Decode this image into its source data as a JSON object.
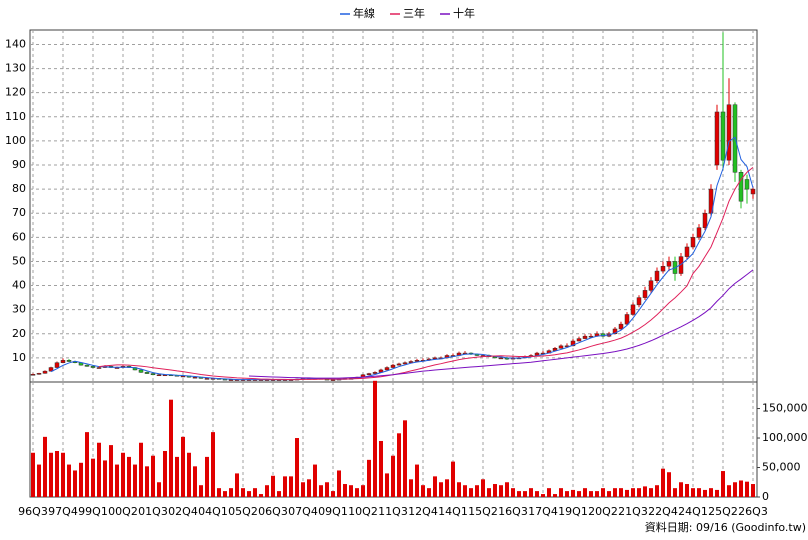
{
  "chart_data": {
    "type": "candlestick",
    "categories": [
      "96Q3",
      null,
      null,
      null,
      null,
      "97Q4",
      null,
      null,
      null,
      null,
      "99Q1",
      null,
      null,
      null,
      null,
      "00Q2",
      null,
      null,
      null,
      null,
      "01Q3",
      null,
      null,
      null,
      null,
      "02Q4",
      null,
      null,
      null,
      null,
      "04Q1",
      null,
      null,
      null,
      null,
      "05Q2",
      null,
      null,
      null,
      null,
      "06Q3",
      null,
      null,
      null,
      null,
      "07Q4",
      null,
      null,
      null,
      null,
      "09Q1",
      null,
      null,
      null,
      null,
      "10Q2",
      null,
      null,
      null,
      null,
      "11Q3",
      null,
      null,
      null,
      null,
      "12Q4",
      null,
      null,
      null,
      null,
      "14Q1",
      null,
      null,
      null,
      null,
      "15Q2",
      null,
      null,
      null,
      null,
      "16Q3",
      null,
      null,
      null,
      null,
      "17Q4",
      null,
      null,
      null,
      null,
      "19Q1",
      null,
      null,
      null,
      null,
      "20Q2",
      null,
      null,
      null,
      null,
      "21Q3",
      null,
      null,
      null,
      null,
      "22Q4",
      null,
      null,
      null,
      null,
      "24Q1",
      null,
      null,
      null,
      null,
      "25Q2",
      null,
      null,
      null,
      null,
      "26Q3"
    ],
    "open": [
      3,
      3.2,
      3.6,
      4.5,
      6,
      8,
      9,
      8.5,
      8,
      7,
      6.5,
      6,
      6,
      6.5,
      6,
      6,
      6.5,
      6,
      5,
      4,
      3.5,
      3,
      3,
      3,
      2.8,
      2.5,
      2.5,
      2,
      2,
      1.5,
      1.5,
      1.5,
      1.2,
      1,
      1,
      1,
      1,
      1,
      1,
      1,
      1,
      1,
      1,
      1,
      1,
      1.2,
      1.5,
      1.5,
      1.5,
      1.2,
      1,
      1,
      1.2,
      1.5,
      1.5,
      2,
      3,
      3.5,
      4,
      5,
      6,
      7,
      7.5,
      8,
      8.5,
      9,
      9,
      9.5,
      10,
      10,
      11,
      11,
      12,
      12,
      11.5,
      11,
      11,
      10.5,
      10,
      10,
      9.5,
      10,
      10,
      10.5,
      11,
      12,
      12,
      13,
      14,
      15,
      15,
      17,
      18,
      19,
      19,
      20,
      19,
      20,
      22,
      24,
      28,
      32,
      35,
      38,
      42,
      46,
      48,
      50,
      45,
      52,
      56,
      60,
      64,
      70,
      90,
      112,
      92,
      115,
      87,
      84,
      78
    ],
    "high": [
      3.5,
      3.8,
      4.8,
      6.3,
      8.5,
      9.8,
      9.5,
      8.8,
      8.2,
      7.2,
      6.8,
      6.5,
      7,
      6.8,
      6.4,
      6.9,
      6.8,
      6.2,
      5.2,
      4.3,
      3.8,
      3.4,
      3.3,
      3.2,
      3,
      2.8,
      2.7,
      2.3,
      2.1,
      1.8,
      1.8,
      1.6,
      1.4,
      1.2,
      1.2,
      1.2,
      1.2,
      1.2,
      1.2,
      1.2,
      1.2,
      1.2,
      1.2,
      1.2,
      1.4,
      1.7,
      1.8,
      1.7,
      1.6,
      1.4,
      1.2,
      1.4,
      1.7,
      1.8,
      2.2,
      3.3,
      3.8,
      4.4,
      5.5,
      6.5,
      7.5,
      8,
      8.5,
      9,
      9.6,
      9.8,
      10,
      10.5,
      10.6,
      11.5,
      11.8,
      12.6,
      12.8,
      12.3,
      11.8,
      11.6,
      11.4,
      11,
      10.6,
      10.4,
      10.5,
      10.6,
      11,
      11.5,
      12.5,
      12.8,
      13.5,
      14.5,
      15.6,
      16,
      17.8,
      18.8,
      19.8,
      20,
      21,
      20.5,
      20.8,
      22.8,
      25,
      29,
      33,
      36,
      39.5,
      43.5,
      47.5,
      50,
      52,
      52,
      53.5,
      57.5,
      61.5,
      65.5,
      71.5,
      82,
      115,
      145,
      126,
      116,
      88,
      86,
      81
    ],
    "low": [
      2.8,
      3,
      3.4,
      4.3,
      5.8,
      7.8,
      8.3,
      7.8,
      6.8,
      6.3,
      5.8,
      5.7,
      5.8,
      5.8,
      5.7,
      5.8,
      5.8,
      4.8,
      3.8,
      3.3,
      2.8,
      2.8,
      2.8,
      2.6,
      2.3,
      2.3,
      1.8,
      1.8,
      1.4,
      1.3,
      1.3,
      1.1,
      0.9,
      0.9,
      0.9,
      0.9,
      0.9,
      0.9,
      0.9,
      0.9,
      0.9,
      0.9,
      0.9,
      0.9,
      0.9,
      1.1,
      1.3,
      1.3,
      1.1,
      0.9,
      0.9,
      0.9,
      1.1,
      1.3,
      1.4,
      1.8,
      2.8,
      3.3,
      3.8,
      4.8,
      5.8,
      6.8,
      7.3,
      7.8,
      8.2,
      8.6,
      8.7,
      9.2,
      9.6,
      9.7,
      10.5,
      10.7,
      11.5,
      11.2,
      10.8,
      10.6,
      10.3,
      9.8,
      9.6,
      9.2,
      9.3,
      9.6,
      9.8,
      10.2,
      10.8,
      11.5,
      11.8,
      12.8,
      13.8,
      14.5,
      14.8,
      16.8,
      17.8,
      18.5,
      18.7,
      18.5,
      18.6,
      19.7,
      21.5,
      23.5,
      27.5,
      31,
      34,
      37,
      41,
      45,
      46,
      42,
      44,
      51,
      55,
      59,
      63,
      69,
      88,
      88,
      90,
      83,
      72,
      74,
      76
    ],
    "close": [
      3.2,
      3.6,
      4.5,
      6,
      8,
      9,
      8.5,
      8,
      7,
      6.5,
      6,
      6,
      6.5,
      6,
      6,
      6.5,
      6,
      5,
      4,
      3.5,
      3,
      3,
      3,
      2.8,
      2.5,
      2.5,
      2,
      2,
      1.5,
      1.5,
      1.5,
      1.2,
      1,
      1,
      1,
      1,
      1,
      1,
      1,
      1,
      1,
      1,
      1,
      1,
      1.2,
      1.5,
      1.5,
      1.5,
      1.2,
      1,
      1,
      1.2,
      1.5,
      1.5,
      2,
      3,
      3.5,
      4,
      5,
      6,
      7,
      7.5,
      8,
      8.5,
      9,
      9,
      9.5,
      10,
      10,
      11,
      11,
      12,
      12,
      11.5,
      11,
      11,
      10.5,
      10,
      10,
      9.5,
      10,
      10,
      10.5,
      11,
      12,
      12,
      13,
      14,
      15,
      15,
      17,
      18,
      19,
      19,
      20,
      19,
      20,
      22,
      24,
      28,
      32,
      35,
      38,
      42,
      46,
      48,
      50,
      45,
      52,
      56,
      60,
      64,
      70,
      80,
      112,
      92,
      115,
      87,
      75,
      80,
      80
    ],
    "up_color": "#e00000",
    "down_color": "#22c022",
    "ylim": [
      0,
      146
    ],
    "yticks": [
      10,
      20,
      30,
      40,
      50,
      60,
      70,
      80,
      90,
      100,
      110,
      120,
      130,
      140
    ],
    "grid": true,
    "series": [
      {
        "name": "年線",
        "color": "#2060e0",
        "values": [
          null,
          null,
          null,
          4.3,
          5.5,
          6.9,
          7.9,
          8.6,
          8.1,
          7.5,
          6.9,
          6.4,
          6.3,
          6.1,
          6.1,
          6.1,
          6.1,
          5.9,
          5.4,
          4.6,
          3.9,
          3.4,
          3.1,
          3,
          2.8,
          2.7,
          2.5,
          2.3,
          2,
          1.8,
          1.6,
          1.4,
          1.3,
          1.2,
          1,
          1,
          1,
          1,
          1,
          1,
          1,
          1,
          1,
          1,
          1.1,
          1.2,
          1.3,
          1.4,
          1.4,
          1.3,
          1.2,
          1.1,
          1.2,
          1.3,
          1.6,
          2,
          2.5,
          3.1,
          3.9,
          4.6,
          5.5,
          6.4,
          7.1,
          7.8,
          8.3,
          8.6,
          9,
          9.4,
          9.6,
          10.1,
          10.5,
          11,
          11.5,
          11.6,
          11.6,
          11.4,
          11,
          10.6,
          10.4,
          10,
          9.9,
          9.9,
          10.1,
          10.4,
          10.9,
          11.4,
          12,
          12.8,
          13.5,
          14.3,
          15.3,
          16.3,
          17.3,
          18.3,
          19,
          19.3,
          19.5,
          20.3,
          21.5,
          23.5,
          26.5,
          29.8,
          33.3,
          36.8,
          40.3,
          43.5,
          46.5,
          47.3,
          48.8,
          50.8,
          53.3,
          58,
          62.5,
          68.5,
          81.5,
          88.5,
          99.8,
          101.5,
          92.3,
          89.3,
          80.5
        ]
      },
      {
        "name": "三年",
        "color": "#e0205a",
        "values": [
          null,
          null,
          null,
          null,
          null,
          null,
          null,
          null,
          null,
          null,
          null,
          6.4,
          6.7,
          6.9,
          7.1,
          7.1,
          7,
          6.8,
          6.6,
          6.3,
          5.9,
          5.6,
          5.3,
          5,
          4.6,
          4.3,
          3.9,
          3.5,
          3.1,
          2.8,
          2.5,
          2.3,
          2.1,
          1.9,
          1.7,
          1.6,
          1.5,
          1.4,
          1.2,
          1.2,
          1.1,
          1.1,
          1.1,
          1,
          1,
          1.1,
          1.1,
          1.1,
          1.2,
          1.2,
          1.2,
          1.2,
          1.2,
          1.3,
          1.4,
          1.5,
          1.7,
          1.9,
          2.2,
          2.6,
          3,
          3.5,
          4,
          4.6,
          5.2,
          5.8,
          6.5,
          7.1,
          7.6,
          8.2,
          8.7,
          9.3,
          9.7,
          10,
          10.3,
          10.5,
          10.7,
          10.8,
          10.9,
          10.8,
          10.7,
          10.6,
          10.6,
          10.6,
          10.7,
          10.8,
          11,
          11.3,
          11.7,
          12.1,
          12.7,
          13.3,
          14,
          14.8,
          15.5,
          16.1,
          16.7,
          17.4,
          18.2,
          19.3,
          20.7,
          22.1,
          23.8,
          25.7,
          27.9,
          30.3,
          32.8,
          34.9,
          37.3,
          39.9,
          45,
          48,
          52,
          56,
          62,
          68,
          75,
          80,
          84,
          87,
          89
        ]
      },
      {
        "name": "十年",
        "color": "#7a10c0",
        "values": [
          null,
          null,
          null,
          null,
          null,
          null,
          null,
          null,
          null,
          null,
          null,
          null,
          null,
          null,
          null,
          null,
          null,
          null,
          null,
          null,
          null,
          null,
          null,
          null,
          null,
          null,
          null,
          null,
          null,
          null,
          null,
          null,
          null,
          null,
          null,
          null,
          2.5,
          2.4,
          2.3,
          2.2,
          2.1,
          2,
          1.9,
          1.8,
          1.8,
          1.7,
          1.7,
          1.6,
          1.6,
          1.6,
          1.6,
          1.6,
          1.7,
          1.8,
          1.9,
          2,
          2.2,
          2.4,
          2.6,
          2.8,
          3,
          3.3,
          3.6,
          3.9,
          4.2,
          4.5,
          4.7,
          5,
          5.2,
          5.4,
          5.6,
          5.8,
          6,
          6.2,
          6.4,
          6.6,
          6.8,
          7,
          7.2,
          7.4,
          7.6,
          7.8,
          8,
          8.2,
          8.5,
          8.8,
          9.1,
          9.4,
          9.7,
          10,
          10.3,
          10.6,
          10.9,
          11.2,
          11.5,
          11.8,
          12.2,
          12.6,
          13.1,
          13.7,
          14.4,
          15.2,
          16.1,
          17.1,
          18.2,
          19.4,
          20.6,
          21.7,
          22.9,
          24.2,
          25.6,
          27.1,
          28.8,
          30.8,
          33.5,
          35.9,
          38.7,
          40.9,
          42.7,
          44.6,
          46.5
        ]
      }
    ],
    "volume": {
      "color": "#e00000",
      "values": [
        75000,
        55000,
        102000,
        75000,
        78000,
        75000,
        55000,
        45000,
        58000,
        110000,
        65000,
        92000,
        62000,
        88000,
        55000,
        75000,
        68000,
        55000,
        92000,
        52000,
        70000,
        25000,
        78000,
        165000,
        68000,
        102000,
        75000,
        52000,
        20000,
        68000,
        110000,
        15000,
        10000,
        15000,
        40000,
        15000,
        10000,
        15000,
        5000,
        20000,
        36000,
        10000,
        35000,
        35000,
        100000,
        25000,
        30000,
        55000,
        20000,
        25000,
        10000,
        45000,
        22000,
        20000,
        15000,
        20000,
        63000,
        197000,
        95000,
        40000,
        70000,
        108000,
        130000,
        30000,
        55000,
        20000,
        15000,
        35000,
        25000,
        30000,
        60000,
        25000,
        20000,
        15000,
        20000,
        30000,
        15000,
        22000,
        20000,
        25000,
        15000,
        10000,
        10000,
        15000,
        10000,
        5000,
        15000,
        5000,
        15000,
        10000,
        12000,
        10000,
        15000,
        10000,
        10000,
        15000,
        10000,
        15000,
        15000,
        12000,
        15000,
        15000,
        18000,
        15000,
        20000,
        48000,
        42000,
        15000,
        25000,
        22000,
        15000,
        15000,
        12000,
        15000,
        12000,
        44000,
        20000,
        25000,
        28000,
        26000,
        22000
      ],
      "ylim": [
        0,
        195000
      ],
      "yticks": [
        0,
        {
          "value": 50000,
          "label": "50,000"
        },
        {
          "value": 100000,
          "label": "100,000"
        },
        {
          "value": 150000,
          "label": "150,000"
        }
      ]
    },
    "footer": "資料日期: 09/16  (Goodinfo.tw)"
  }
}
